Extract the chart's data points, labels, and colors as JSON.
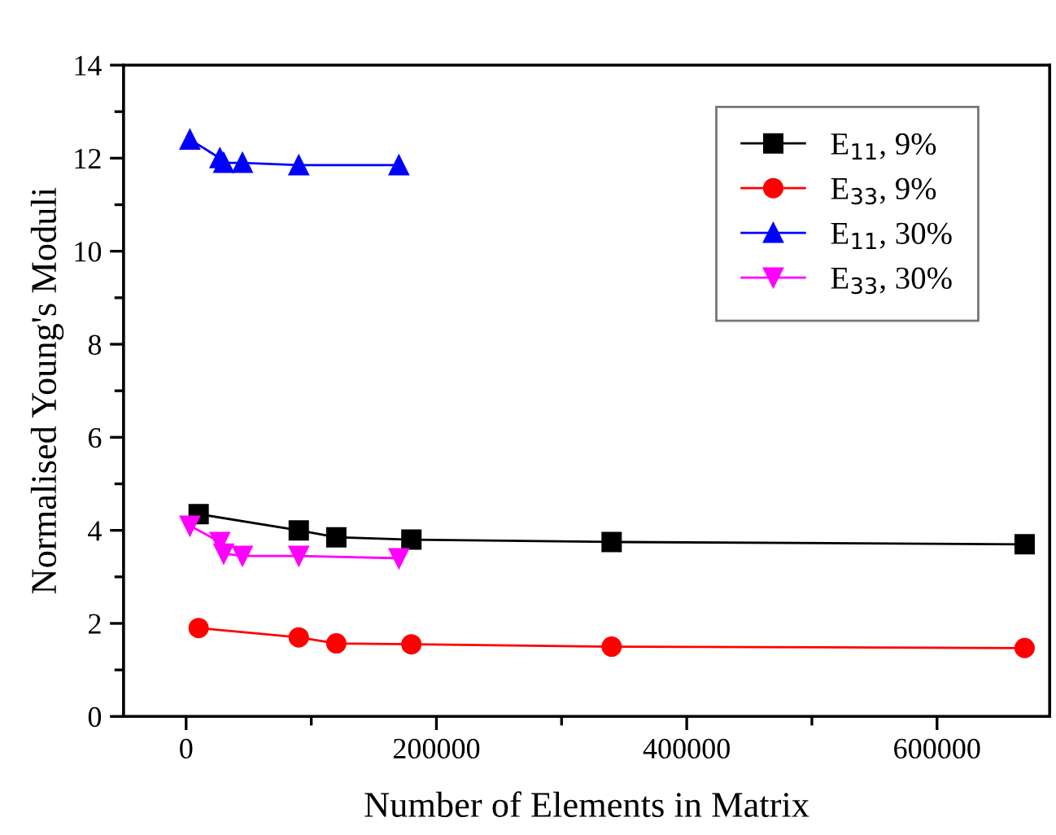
{
  "chart_data": {
    "type": "line",
    "xlabel": "Number of Elements in Matrix",
    "ylabel": "Normalised Young's Moduli",
    "xlim": [
      -50000,
      690000
    ],
    "xticks": [
      0,
      200000,
      400000,
      600000
    ],
    "ylim": [
      0,
      14
    ],
    "yticks": [
      0,
      2,
      4,
      6,
      8,
      10,
      12,
      14
    ],
    "grid": false,
    "legend": "top right",
    "series": [
      {
        "name": "E$_{11}$, 9%",
        "color": "#000000",
        "marker": "square",
        "x": [
          10000,
          90000,
          120000,
          180000,
          340000,
          670000
        ],
        "values": [
          4.35,
          4.0,
          3.85,
          3.8,
          3.75,
          3.7
        ]
      },
      {
        "name": "E$_{33}$, 9%",
        "color": "#ff0000",
        "marker": "circle",
        "x": [
          10000,
          90000,
          120000,
          180000,
          340000,
          670000
        ],
        "values": [
          1.9,
          1.7,
          1.57,
          1.55,
          1.5,
          1.47
        ]
      },
      {
        "name": "E$_{11}$, 30%",
        "color": "#0000ff",
        "marker": "triangle",
        "x": [
          3000,
          27000,
          30000,
          45000,
          90000,
          170000
        ],
        "values": [
          12.4,
          12.0,
          11.9,
          11.9,
          11.85,
          11.85
        ]
      },
      {
        "name": "E$_{33}$, 30%",
        "color": "#ff00ff",
        "marker": "triangle_down",
        "x": [
          3000,
          27000,
          30000,
          45000,
          90000,
          170000
        ],
        "values": [
          4.1,
          3.75,
          3.5,
          3.45,
          3.45,
          3.4
        ]
      }
    ]
  }
}
